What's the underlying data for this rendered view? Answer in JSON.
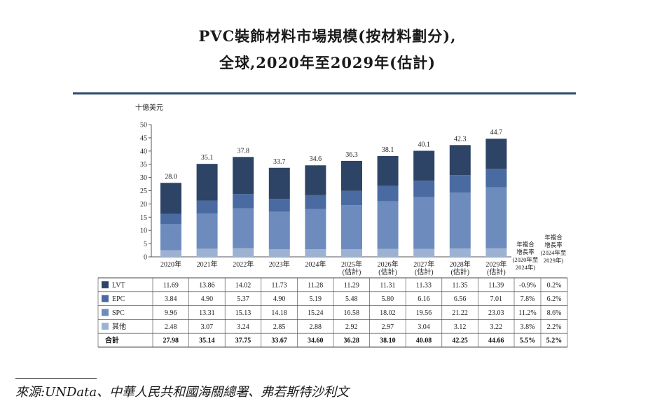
{
  "title_line1": "PVC裝飾材料市場規模(按材料劃分),",
  "title_line2": "全球,2020年至2029年(估計)",
  "source": "來源:UNData、中華人民共和國海關總署、弗若斯特沙利文",
  "chart_data": {
    "type": "bar",
    "stacked": true,
    "unit_label": "十億美元",
    "ylim": [
      0,
      50
    ],
    "yticks": [
      "0",
      "5",
      "10",
      "15",
      "20",
      "25",
      "30",
      "35",
      "40",
      "45",
      "50"
    ],
    "categories": [
      [
        "2020年"
      ],
      [
        "2021年"
      ],
      [
        "2022年"
      ],
      [
        "2023年"
      ],
      [
        "2024年"
      ],
      [
        "2025年",
        "(估計)"
      ],
      [
        "2026年",
        "(估計)"
      ],
      [
        "2027年",
        "(估計)"
      ],
      [
        "2028年",
        "(估計)"
      ],
      [
        "2029年",
        "(估計)"
      ]
    ],
    "totals_labels": [
      "28.0",
      "35.1",
      "37.8",
      "33.7",
      "34.6",
      "36.3",
      "38.1",
      "40.1",
      "42.3",
      "44.7"
    ],
    "series": [
      {
        "name": "其他",
        "color": "#9db2d2",
        "values": [
          2.48,
          3.07,
          3.24,
          2.85,
          2.88,
          2.92,
          2.97,
          3.04,
          3.12,
          3.22
        ],
        "labels": [
          "2.48",
          "3.07",
          "3.24",
          "2.85",
          "2.88",
          "2.92",
          "2.97",
          "3.04",
          "3.12",
          "3.22"
        ],
        "cagr": [
          "3.8%",
          "2.2%"
        ]
      },
      {
        "name": "SPC",
        "color": "#6d8cbd",
        "values": [
          9.96,
          13.31,
          15.13,
          14.18,
          15.24,
          16.58,
          18.02,
          19.56,
          21.22,
          23.03
        ],
        "labels": [
          "9.96",
          "13.31",
          "15.13",
          "14.18",
          "15.24",
          "16.58",
          "18.02",
          "19.56",
          "21.22",
          "23.03"
        ],
        "cagr": [
          "11.2%",
          "8.6%"
        ]
      },
      {
        "name": "EPC",
        "color": "#4a6aa2",
        "values": [
          3.84,
          4.9,
          5.37,
          4.9,
          5.19,
          5.48,
          5.8,
          6.16,
          6.56,
          7.01
        ],
        "labels": [
          "3.84",
          "4.90",
          "5.37",
          "4.90",
          "5.19",
          "5.48",
          "5.80",
          "6.16",
          "6.56",
          "7.01"
        ],
        "cagr": [
          "7.8%",
          "6.2%"
        ]
      },
      {
        "name": "LVT",
        "color": "#2d4466",
        "values": [
          11.69,
          13.86,
          14.02,
          11.73,
          11.28,
          11.29,
          11.31,
          11.33,
          11.35,
          11.39
        ],
        "labels": [
          "11.69",
          "13.86",
          "14.02",
          "11.73",
          "11.28",
          "11.29",
          "11.31",
          "11.33",
          "11.35",
          "11.39"
        ],
        "cagr": [
          "-0.9%",
          "0.2%"
        ]
      }
    ],
    "table": {
      "row_order": [
        "LVT",
        "EPC",
        "SPC",
        "其他"
      ],
      "total_label": "合計",
      "total_values": [
        "27.98",
        "35.14",
        "37.75",
        "33.67",
        "34.60",
        "36.28",
        "38.10",
        "40.08",
        "42.25",
        "44.66"
      ],
      "total_cagr": [
        "5.5%",
        "5.2%"
      ]
    },
    "cagr_headers": [
      [
        "年複合",
        "增長率",
        "(2020年至",
        "2024年)"
      ],
      [
        "年複合",
        "增長率",
        "(2024年至",
        "2029年)"
      ]
    ]
  }
}
